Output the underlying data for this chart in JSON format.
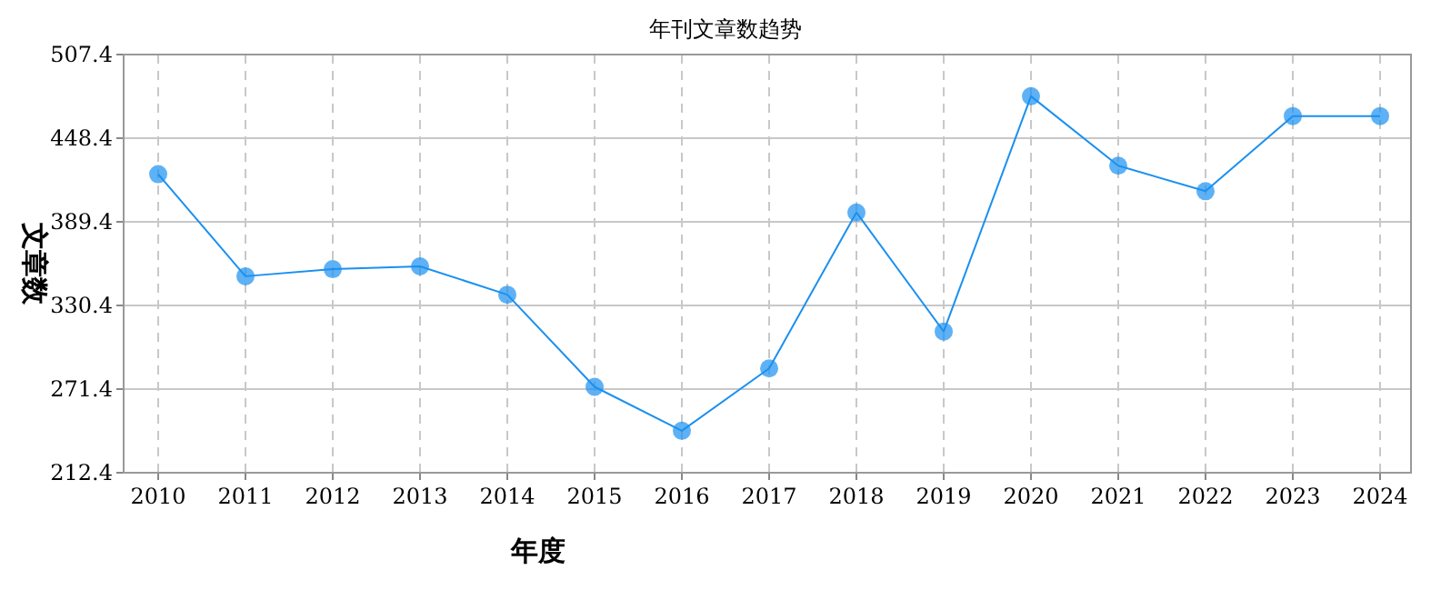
{
  "chart_data": {
    "type": "line",
    "title": "年刊文章数趋势",
    "xlabel": "年度",
    "ylabel": "文章数",
    "categories": [
      "2010",
      "2011",
      "2012",
      "2013",
      "2014",
      "2015",
      "2016",
      "2017",
      "2018",
      "2019",
      "2020",
      "2021",
      "2022",
      "2023",
      "2024"
    ],
    "series": [
      {
        "color": "#1a90f0",
        "values": [
          423,
          351,
          356,
          358,
          338,
          273,
          242,
          286,
          396,
          312,
          478,
          429,
          411,
          464,
          464
        ]
      }
    ],
    "ylim": [
      212.4,
      507.4
    ],
    "yticks": [
      212.4,
      271.4,
      330.4,
      389.4,
      448.4,
      507.4
    ],
    "grid": true,
    "marker": "circle",
    "line_style": "solid"
  }
}
